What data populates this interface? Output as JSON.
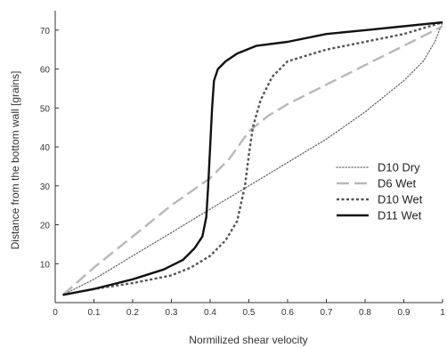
{
  "chart_data": {
    "type": "line",
    "title": "",
    "xlabel": "Normilized shear velocity",
    "ylabel": "Distance from the bottom wall [grains]",
    "xlim": [
      0,
      1
    ],
    "ylim": [
      0,
      75
    ],
    "x_ticks": [
      "0",
      "0.1",
      "0.2",
      "0.3",
      "0.4",
      "0.5",
      "0.6",
      "0.7",
      "0.8",
      "0.9",
      "1"
    ],
    "y_ticks": [
      "10",
      "20",
      "30",
      "40",
      "50",
      "60",
      "70"
    ],
    "grid": false,
    "legend_position": "right",
    "series": [
      {
        "name": "D10 Dry",
        "color": "#666666",
        "style": "dotted-fine",
        "points": [
          [
            0.02,
            2
          ],
          [
            0.1,
            6
          ],
          [
            0.2,
            12
          ],
          [
            0.3,
            18
          ],
          [
            0.4,
            24
          ],
          [
            0.5,
            30
          ],
          [
            0.6,
            36
          ],
          [
            0.7,
            42
          ],
          [
            0.8,
            49
          ],
          [
            0.9,
            57
          ],
          [
            0.95,
            62
          ],
          [
            0.98,
            67
          ],
          [
            1.0,
            72
          ]
        ]
      },
      {
        "name": "D6 Wet",
        "color": "#b8b8b8",
        "style": "long-dash",
        "points": [
          [
            0.02,
            2
          ],
          [
            0.1,
            9
          ],
          [
            0.2,
            17
          ],
          [
            0.3,
            25
          ],
          [
            0.4,
            32
          ],
          [
            0.45,
            37
          ],
          [
            0.5,
            44
          ],
          [
            0.55,
            48
          ],
          [
            0.6,
            51
          ],
          [
            0.7,
            56
          ],
          [
            0.8,
            61
          ],
          [
            0.9,
            66
          ],
          [
            1.0,
            71
          ]
        ]
      },
      {
        "name": "D10 Wet",
        "color": "#555555",
        "style": "short-dash",
        "points": [
          [
            0.02,
            2
          ],
          [
            0.1,
            3.5
          ],
          [
            0.2,
            5
          ],
          [
            0.3,
            7
          ],
          [
            0.35,
            9
          ],
          [
            0.4,
            12
          ],
          [
            0.44,
            16
          ],
          [
            0.47,
            21
          ],
          [
            0.49,
            30
          ],
          [
            0.5,
            38
          ],
          [
            0.51,
            45
          ],
          [
            0.53,
            52
          ],
          [
            0.56,
            58
          ],
          [
            0.6,
            62
          ],
          [
            0.7,
            65
          ],
          [
            0.8,
            67
          ],
          [
            0.9,
            69
          ],
          [
            1.0,
            72
          ]
        ]
      },
      {
        "name": "D11 Wet",
        "color": "#111111",
        "style": "solid",
        "points": [
          [
            0.02,
            2
          ],
          [
            0.1,
            3.5
          ],
          [
            0.2,
            6
          ],
          [
            0.28,
            8.5
          ],
          [
            0.33,
            11
          ],
          [
            0.36,
            14
          ],
          [
            0.38,
            17
          ],
          [
            0.39,
            22
          ],
          [
            0.395,
            30
          ],
          [
            0.4,
            40
          ],
          [
            0.405,
            50
          ],
          [
            0.41,
            57
          ],
          [
            0.42,
            60
          ],
          [
            0.44,
            62
          ],
          [
            0.47,
            64
          ],
          [
            0.52,
            66
          ],
          [
            0.6,
            67
          ],
          [
            0.7,
            69
          ],
          [
            0.8,
            70
          ],
          [
            0.9,
            71
          ],
          [
            1.0,
            72
          ]
        ]
      }
    ]
  }
}
